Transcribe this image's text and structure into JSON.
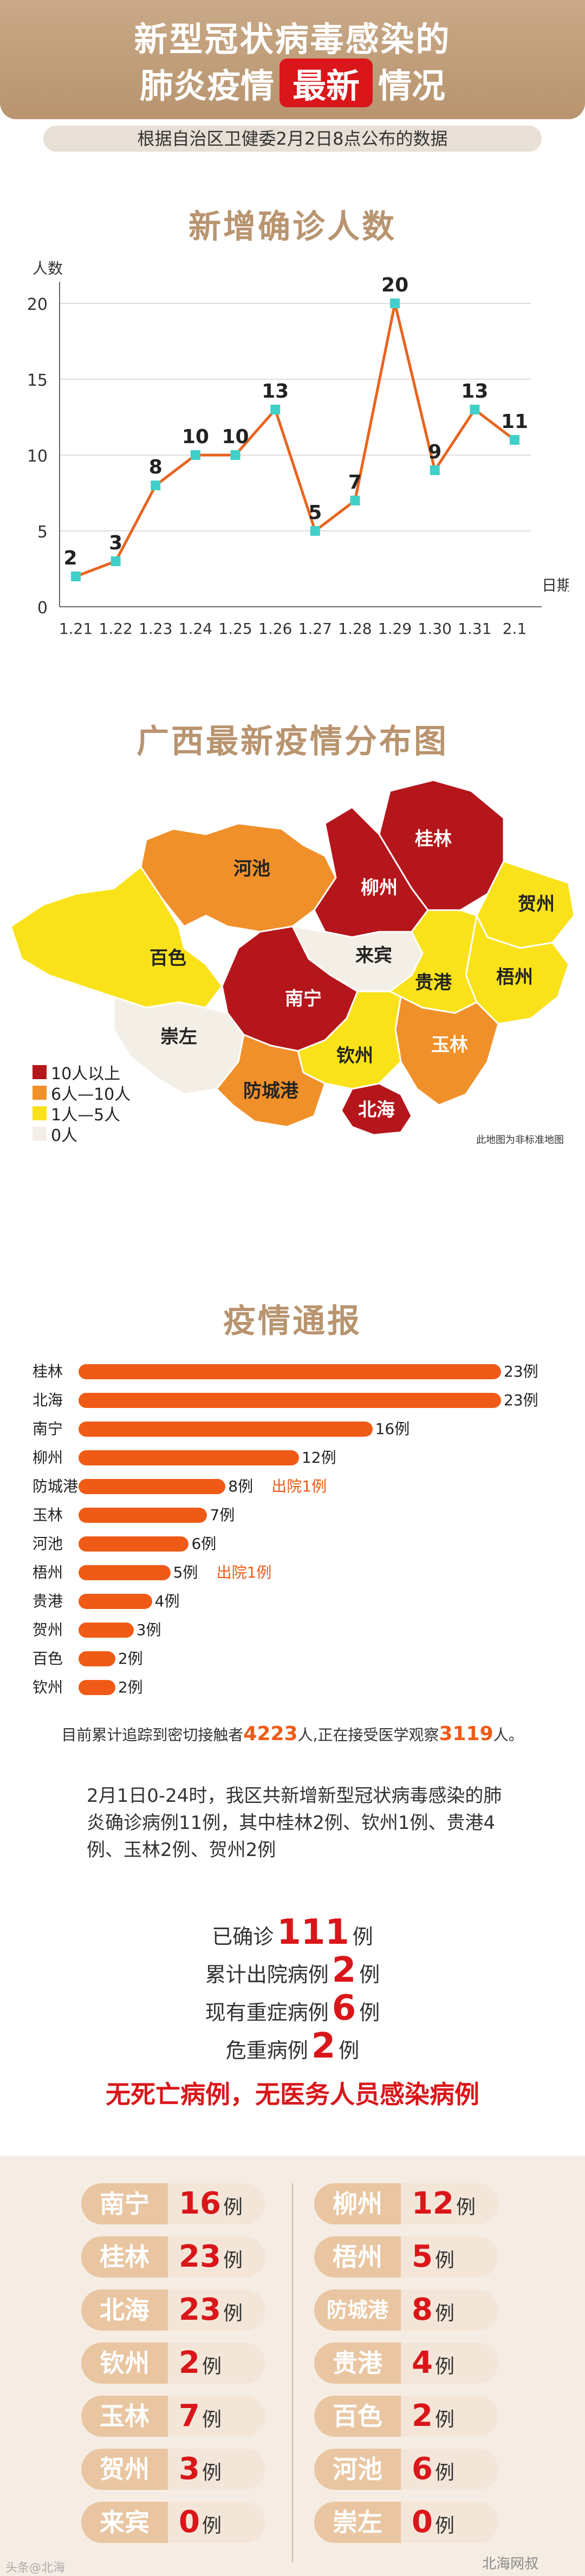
{
  "header": {
    "title_line1": "新型冠状病毒感染的",
    "title_line2_pre": "肺炎疫情",
    "title_line2_highlight": "最新",
    "title_line2_post": "情况",
    "subtitle": "根据自治区卫健委2月2日8点公布的数据"
  },
  "chart_title": "新增确诊人数",
  "chart_data": {
    "type": "line",
    "title": "新增确诊人数",
    "ylabel": "人数",
    "xlabel": "日期",
    "categories": [
      "1.21",
      "1.22",
      "1.23",
      "1.24",
      "1.25",
      "1.26",
      "1.27",
      "1.28",
      "1.29",
      "1.30",
      "1.31",
      "2.1"
    ],
    "values": [
      2,
      3,
      8,
      10,
      10,
      13,
      5,
      7,
      20,
      9,
      13,
      11
    ],
    "ylim": [
      0,
      20
    ],
    "yticks": [
      0,
      5,
      10,
      15,
      20
    ],
    "grid": true,
    "line_color": "#e8641e",
    "marker_color": "#3fd0c9"
  },
  "map": {
    "title": "广西最新疫情分布图",
    "regions": {
      "guilin": "桂林",
      "hechi": "河池",
      "liuzhou": "柳州",
      "hezhou": "贺州",
      "baise": "百色",
      "laibin": "来宾",
      "guigang": "贵港",
      "wuzhou": "梧州",
      "nanning": "南宁",
      "chongzuo": "崇左",
      "yulin": "玉林",
      "qinzhou": "钦州",
      "fangchenggang": "防城港",
      "beihai": "北海"
    },
    "legend": [
      {
        "label": "10人以上",
        "color": "#b5161b"
      },
      {
        "label": "6人—10人",
        "color": "#f0902a"
      },
      {
        "label": "1人—5人",
        "color": "#f9e21a"
      },
      {
        "label": "0人",
        "color": "#f4efe6"
      }
    ],
    "note": "此地图为非标准地图"
  },
  "report": {
    "title": "疫情通报",
    "rows": [
      {
        "name": "桂林",
        "value": 23,
        "label": "23例",
        "note": ""
      },
      {
        "name": "北海",
        "value": 23,
        "label": "23例",
        "note": ""
      },
      {
        "name": "南宁",
        "value": 16,
        "label": "16例",
        "note": ""
      },
      {
        "name": "柳州",
        "value": 12,
        "label": "12例",
        "note": ""
      },
      {
        "name": "防城港",
        "value": 8,
        "label": "8例",
        "note": "出院1例"
      },
      {
        "name": "玉林",
        "value": 7,
        "label": "7例",
        "note": ""
      },
      {
        "name": "河池",
        "value": 6,
        "label": "6例",
        "note": ""
      },
      {
        "name": "梧州",
        "value": 5,
        "label": "5例",
        "note": "出院1例"
      },
      {
        "name": "贵港",
        "value": 4,
        "label": "4例",
        "note": ""
      },
      {
        "name": "贺州",
        "value": 3,
        "label": "3例",
        "note": ""
      },
      {
        "name": "百色",
        "value": 2,
        "label": "2例",
        "note": ""
      },
      {
        "name": "钦州",
        "value": 2,
        "label": "2例",
        "note": ""
      }
    ],
    "contact_pre": "目前累计追踪到密切接触者",
    "contact_num1": "4223",
    "contact_mid": "人,正在接受医学观察",
    "contact_num2": "3119",
    "contact_post": "人。"
  },
  "paragraph": "2月1日0-24时，我区共新增新型冠状病毒感染的肺炎确诊病例11例，其中桂林2例、钦州1例、贵港4例、玉林2例、贺州2例",
  "stats": [
    {
      "label": "已确诊",
      "value": "111",
      "unit": "例"
    },
    {
      "label": "累计出院病例",
      "value": "2",
      "unit": "例"
    },
    {
      "label": "现有重症病例",
      "value": "6",
      "unit": "例"
    },
    {
      "label": "危重病例",
      "value": "2",
      "unit": "例"
    }
  ],
  "no_death": "无死亡病例，无医务人员感染病例",
  "grid": {
    "left": [
      {
        "name": "南宁",
        "value": "16",
        "unit": "例"
      },
      {
        "name": "桂林",
        "value": "23",
        "unit": "例"
      },
      {
        "name": "北海",
        "value": "23",
        "unit": "例"
      },
      {
        "name": "钦州",
        "value": "2",
        "unit": "例"
      },
      {
        "name": "玉林",
        "value": "7",
        "unit": "例"
      },
      {
        "name": "贺州",
        "value": "3",
        "unit": "例"
      },
      {
        "name": "来宾",
        "value": "0",
        "unit": "例"
      }
    ],
    "right": [
      {
        "name": "柳州",
        "value": "12",
        "unit": "例"
      },
      {
        "name": "梧州",
        "value": "5",
        "unit": "例"
      },
      {
        "name": "防城港",
        "value": "8",
        "unit": "例"
      },
      {
        "name": "贵港",
        "value": "4",
        "unit": "例"
      },
      {
        "name": "百色",
        "value": "2",
        "unit": "例"
      },
      {
        "name": "河池",
        "value": "6",
        "unit": "例"
      },
      {
        "name": "崇左",
        "value": "0",
        "unit": "例"
      }
    ]
  },
  "watermark_left": "头条@北海",
  "watermark_right": "北海网叔"
}
